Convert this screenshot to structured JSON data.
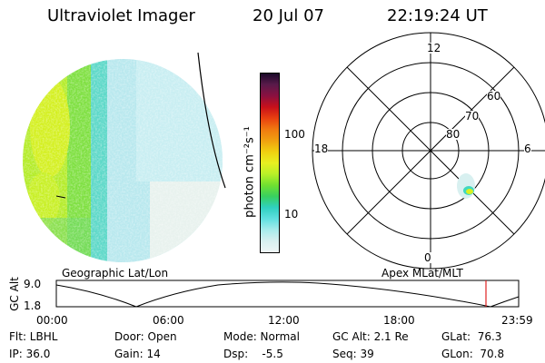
{
  "header": {
    "title": "Ultraviolet Imager",
    "date": "20 Jul 07",
    "time": "22:19:24 UT"
  },
  "colorbar": {
    "unit_label": "photon cm⁻²s⁻¹",
    "ticks": [
      "100",
      "10"
    ],
    "colors": [
      "#1a0a2a",
      "#5a1a4a",
      "#8a1040",
      "#c8101a",
      "#e84010",
      "#f07a10",
      "#f0a010",
      "#f0d010",
      "#e8f020",
      "#b8f028",
      "#70e030",
      "#38d060",
      "#30d0c0",
      "#60e0e0",
      "#a8ecec",
      "#d8f0f0",
      "#eef6f6"
    ]
  },
  "left_map": {
    "label": "Geographic Lat/Lon"
  },
  "polar": {
    "label": "Apex MLat/MLT",
    "mlt_labels": {
      "top": "12",
      "right": "6",
      "bottom": "0",
      "left": "18"
    },
    "lat_labels": [
      "60",
      "70",
      "80"
    ]
  },
  "alt_plot": {
    "axis_label": "GC Alt",
    "y_ticks": [
      "9.0",
      "1.8"
    ],
    "x_ticks": [
      "00:00",
      "06:00",
      "12:00",
      "18:00",
      "23:59"
    ],
    "marker_color": "#e02020"
  },
  "info": {
    "flt": "Flt: LBHL",
    "ip": "IP: 36.0",
    "door": "Door: Open",
    "gain": "Gain: 14",
    "mode": "Mode: Normal",
    "dsp": "Dsp:    -5.5",
    "gc_alt": "GC Alt: 2.1 Re",
    "seq": "Seq: 39",
    "glat": "GLat:  76.3",
    "glon": "GLon:  70.8"
  }
}
